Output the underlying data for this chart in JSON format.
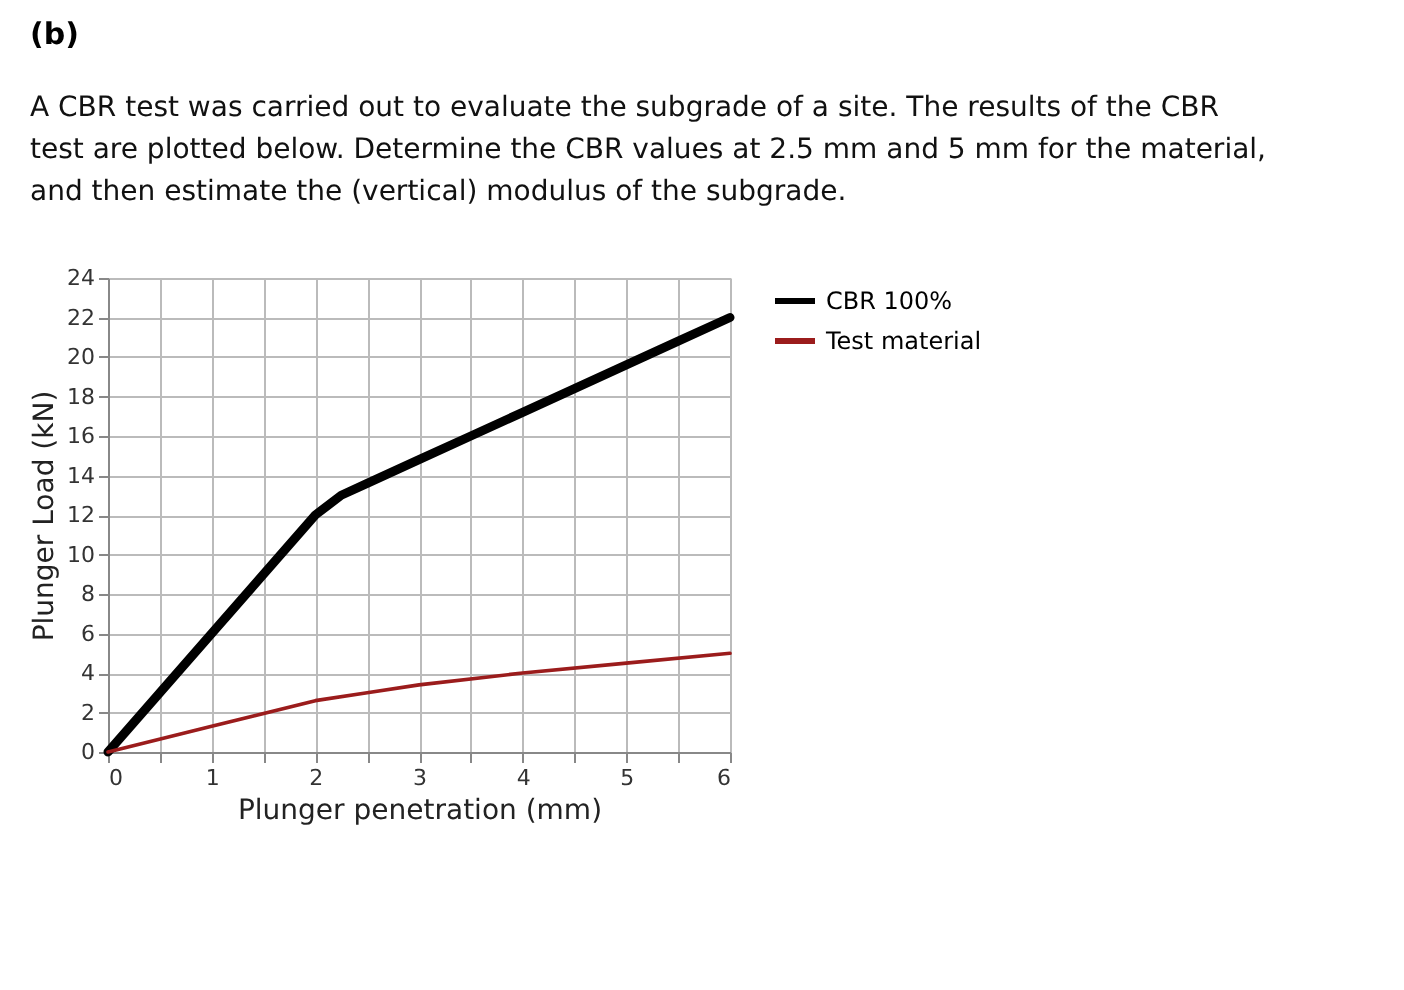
{
  "chart_data": {
    "type": "line",
    "title": "(b)",
    "subtitle": "A CBR test was carried out to evaluate the subgrade of a site. The results of the CBR test are plotted below. Determine the CBR values at 2.5 mm and 5 mm for the material, and then estimate the (vertical) modulus of the subgrade.",
    "xlabel": "Plunger penetration (mm)",
    "ylabel": "Plunger Load (kN)",
    "series": [
      {
        "name": "CBR 100%",
        "color": "#000000",
        "x": [
          0,
          0.5,
          1,
          1.5,
          2,
          2.25,
          2.5,
          3,
          3.5,
          4,
          4.5,
          5,
          5.5,
          6
        ],
        "values": [
          0,
          3,
          6,
          9,
          12,
          13,
          13.6,
          14.8,
          16,
          17.2,
          18.4,
          19.6,
          20.8,
          22
        ]
      },
      {
        "name": "Test material",
        "color": "#9b1c1c",
        "x": [
          0,
          1,
          2,
          2.5,
          3,
          4,
          5,
          6
        ],
        "values": [
          0,
          1.3,
          2.6,
          3,
          3.4,
          4,
          4.5,
          5
        ]
      }
    ],
    "xlim": [
      0,
      6
    ],
    "xticks": [
      0,
      {
        "value": 0.5,
        "label": null
      },
      1,
      {
        "value": 1.5,
        "label": null
      },
      2,
      {
        "value": 2.5,
        "label": null
      },
      3,
      {
        "value": 3.5,
        "label": null
      },
      4,
      {
        "value": 4.5,
        "label": null
      },
      5,
      {
        "value": 5.5,
        "label": null
      },
      6
    ],
    "ylim": [
      0,
      24
    ],
    "yticks": [
      0,
      2,
      4,
      6,
      8,
      10,
      12,
      14,
      16,
      18,
      20,
      22,
      24
    ],
    "grid": true,
    "legend": "right",
    "marker": "none",
    "line_style": "solid"
  }
}
